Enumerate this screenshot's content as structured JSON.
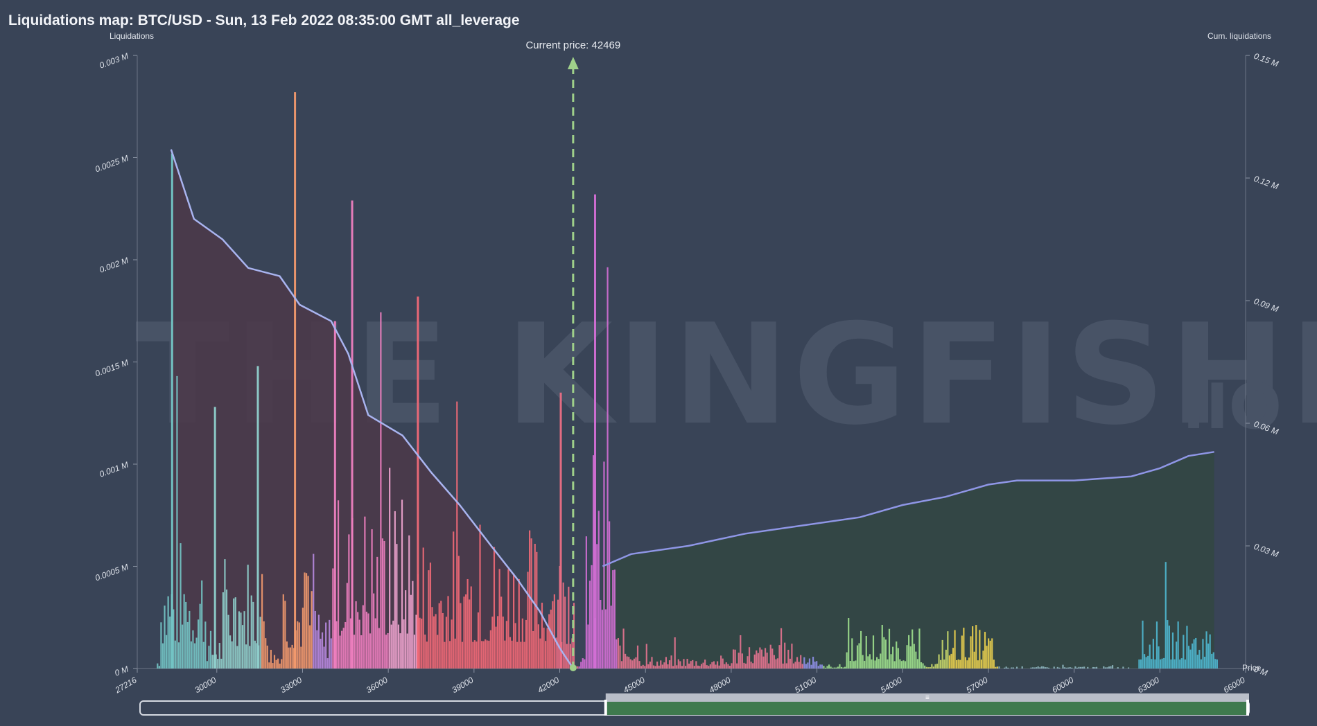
{
  "title": "Liquidations map: BTC/USD - Sun, 13 Feb 2022 08:35:00 GMT all_leverage",
  "watermark": {
    "main": "THE KINGFISHER",
    "suffix": ".IO"
  },
  "colors": {
    "background": "#394457",
    "short_area": "#4b3a4a",
    "long_area": "#334744",
    "cum_line": "#8f96e6",
    "current_price_line": "#9fd08a",
    "range_selected": "#3f7a4e"
  },
  "chart_data": {
    "type": "bar",
    "current_price_label": "Current price: 42469",
    "current_price": 42469,
    "left_axis": {
      "title": "Liquidations",
      "ticks": [
        "0 M",
        "0.0005 M",
        "0.001 M",
        "0.0015 M",
        "0.002 M",
        "0.0025 M",
        "0.003 M"
      ],
      "range": [
        0,
        0.003
      ]
    },
    "right_axis": {
      "title": "Cum. liquidations",
      "ticks": [
        "0 M",
        "0.03 M",
        "0.06 M",
        "0.09 M",
        "0.12 M",
        "0.15 M"
      ],
      "range": [
        0,
        0.15
      ]
    },
    "x_axis": {
      "title": "Price",
      "ticks": [
        "27216",
        "30000",
        "33000",
        "36000",
        "39000",
        "42000",
        "45000",
        "48000",
        "51000",
        "54000",
        "57000",
        "60000",
        "63000",
        "66000"
      ],
      "range": [
        27216,
        66000
      ]
    },
    "highlight_bars": [
      {
        "x": 28400,
        "y": 0.00252
      },
      {
        "x": 29900,
        "y": 0.00128
      },
      {
        "x": 31400,
        "y": 0.00148
      },
      {
        "x": 32700,
        "y": 0.00282
      },
      {
        "x": 34100,
        "y": 0.0017
      },
      {
        "x": 34700,
        "y": 0.00229
      },
      {
        "x": 37000,
        "y": 0.00182
      },
      {
        "x": 42000,
        "y": 0.00135
      },
      {
        "x": 43200,
        "y": 0.00232
      }
    ],
    "cum_short": [
      {
        "x": 28400,
        "y": 0.127
      },
      {
        "x": 29200,
        "y": 0.11
      },
      {
        "x": 30200,
        "y": 0.105
      },
      {
        "x": 31100,
        "y": 0.098
      },
      {
        "x": 32200,
        "y": 0.096
      },
      {
        "x": 32900,
        "y": 0.089
      },
      {
        "x": 34000,
        "y": 0.085
      },
      {
        "x": 34600,
        "y": 0.077
      },
      {
        "x": 35300,
        "y": 0.062
      },
      {
        "x": 36500,
        "y": 0.057
      },
      {
        "x": 37500,
        "y": 0.048
      },
      {
        "x": 38500,
        "y": 0.04
      },
      {
        "x": 39600,
        "y": 0.03
      },
      {
        "x": 40500,
        "y": 0.022
      },
      {
        "x": 41300,
        "y": 0.014
      },
      {
        "x": 42000,
        "y": 0.005
      },
      {
        "x": 42469,
        "y": 0
      }
    ],
    "cum_long": [
      {
        "x": 43500,
        "y": 0.025
      },
      {
        "x": 44500,
        "y": 0.028
      },
      {
        "x": 46500,
        "y": 0.03
      },
      {
        "x": 48500,
        "y": 0.033
      },
      {
        "x": 50500,
        "y": 0.035
      },
      {
        "x": 52500,
        "y": 0.037
      },
      {
        "x": 54000,
        "y": 0.04
      },
      {
        "x": 55500,
        "y": 0.042
      },
      {
        "x": 57000,
        "y": 0.045
      },
      {
        "x": 58000,
        "y": 0.046
      },
      {
        "x": 60000,
        "y": 0.046
      },
      {
        "x": 62000,
        "y": 0.047
      },
      {
        "x": 63000,
        "y": 0.049
      },
      {
        "x": 64000,
        "y": 0.052
      },
      {
        "x": 64900,
        "y": 0.053
      }
    ],
    "range_selector": {
      "from": 43500,
      "to": 66000
    }
  }
}
